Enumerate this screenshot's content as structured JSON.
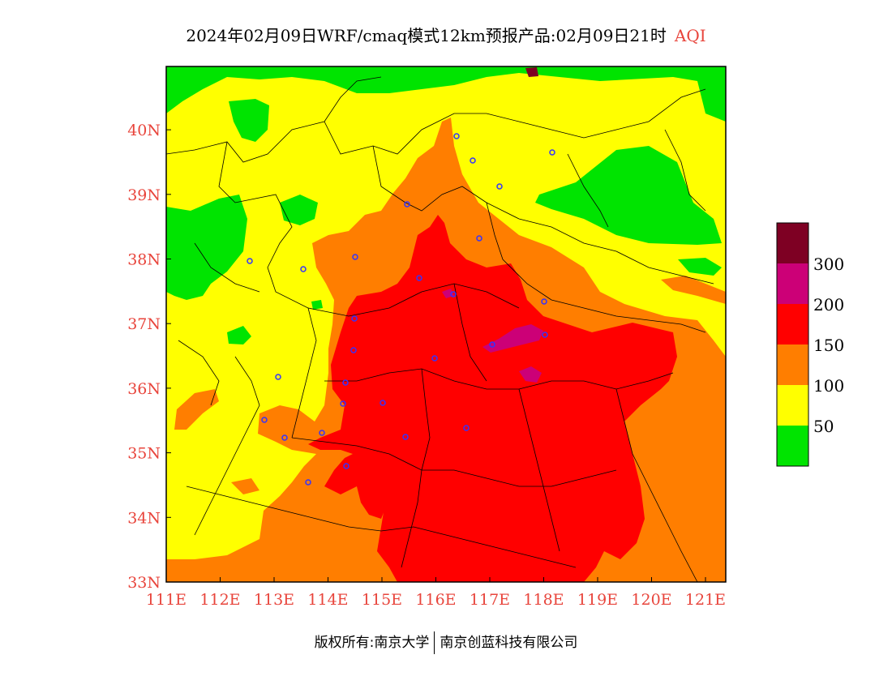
{
  "title": {
    "main": "2024年02月09日WRF/cmaq模式12km预报产品:02月09日21时",
    "variable": "AQI"
  },
  "axes": {
    "lon_ticks": [
      "111E",
      "112E",
      "113E",
      "114E",
      "115E",
      "116E",
      "117E",
      "118E",
      "119E",
      "120E",
      "121E"
    ],
    "lat_ticks": [
      "33N",
      "34N",
      "35N",
      "36N",
      "37N",
      "38N",
      "39N",
      "40N"
    ],
    "tick_color": "#e8453c"
  },
  "legend": {
    "labels": [
      "50",
      "100",
      "150",
      "200",
      "300"
    ],
    "colors": {
      "good": "#00e400",
      "moderate": "#ffff00",
      "usg": "#ff7e00",
      "unhealthy": "#ff0000",
      "very_unhealthy": "#cc0077",
      "hazardous": "#7e0023"
    }
  },
  "footer": {
    "left": "版权所有:南京大学",
    "right": "南京创蓝科技有限公司"
  }
}
